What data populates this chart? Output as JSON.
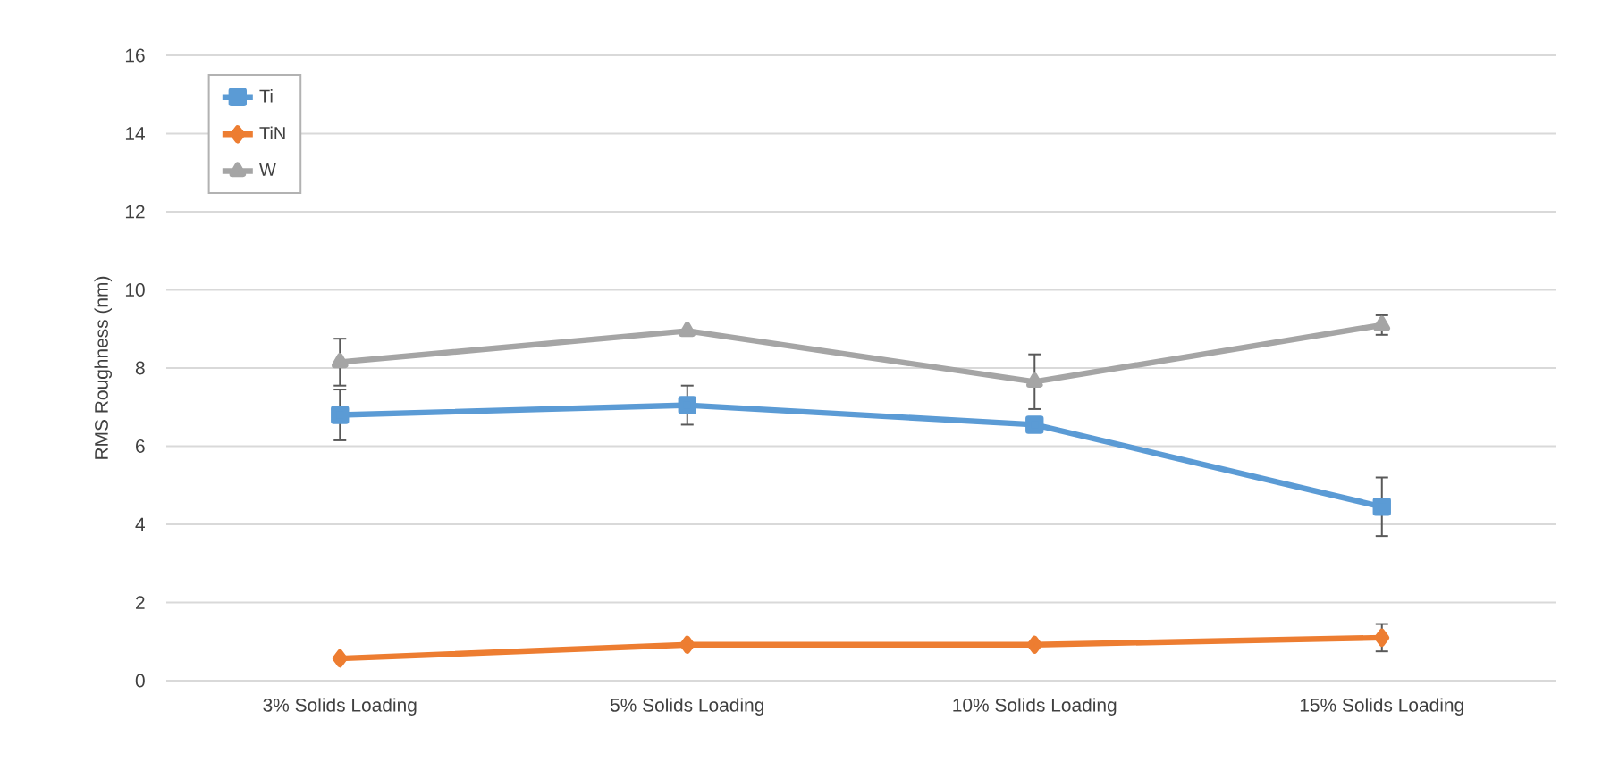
{
  "chart_data": {
    "type": "line",
    "ylabel": "RMS Roughness (nm)",
    "categories": [
      "3% Solids Loading",
      "5% Solids Loading",
      "10% Solids Loading",
      "15% Solids Loading"
    ],
    "series": [
      {
        "name": "Ti",
        "color": "#5b9bd5",
        "marker": "square",
        "values": [
          6.8,
          7.05,
          6.55,
          4.45
        ],
        "errors": [
          0.65,
          0.5,
          null,
          0.75
        ]
      },
      {
        "name": "TiN",
        "color": "#ed7d31",
        "marker": "diamond",
        "values": [
          0.57,
          0.92,
          0.92,
          1.1
        ],
        "errors": [
          null,
          null,
          null,
          0.35
        ]
      },
      {
        "name": "W",
        "color": "#a5a5a5",
        "marker": "triangle",
        "values": [
          8.15,
          8.95,
          7.65,
          9.1
        ],
        "errors": [
          0.6,
          null,
          0.7,
          0.25
        ]
      }
    ],
    "ylim": [
      0,
      16
    ],
    "yticks": [
      0,
      2,
      4,
      6,
      8,
      10,
      12,
      14,
      16
    ],
    "grid": "y",
    "legend": "top left",
    "line_style": "solid"
  }
}
